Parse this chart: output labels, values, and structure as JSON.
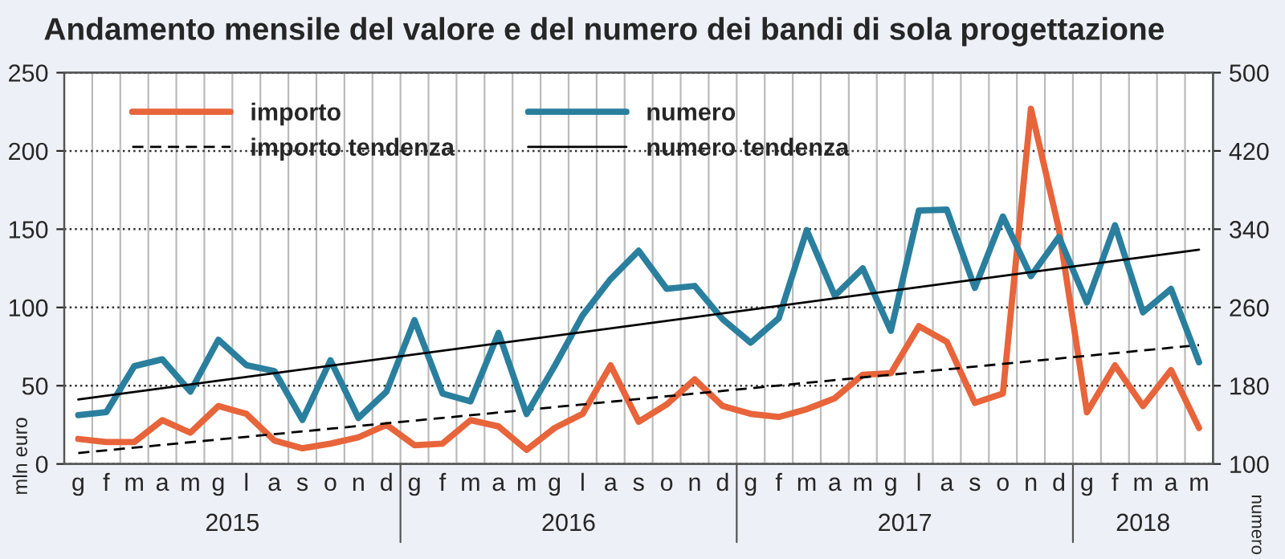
{
  "chart_data": {
    "type": "line",
    "title": "Andamento mensile del valore e del numero dei bandi di sola progettazione",
    "ylabel": "mln euro",
    "y2label": "numero",
    "categories": [
      "g",
      "f",
      "m",
      "a",
      "m",
      "g",
      "l",
      "a",
      "s",
      "o",
      "n",
      "d",
      "g",
      "f",
      "m",
      "a",
      "m",
      "g",
      "l",
      "a",
      "s",
      "o",
      "n",
      "d",
      "g",
      "f",
      "m",
      "a",
      "m",
      "g",
      "l",
      "a",
      "s",
      "o",
      "n",
      "d",
      "g",
      "f",
      "m",
      "a",
      "m"
    ],
    "series": [
      {
        "name": "importo",
        "color": "#e8643a",
        "values": [
          16,
          14,
          14,
          28,
          20,
          37,
          32,
          15,
          10,
          13,
          17,
          25,
          12,
          13,
          28,
          24,
          9,
          23,
          32,
          63,
          27,
          38,
          54,
          37,
          32,
          30,
          35,
          42,
          57,
          58,
          88,
          78,
          39,
          45,
          227,
          150,
          33,
          63,
          37,
          60,
          23
        ]
      },
      {
        "name": "numero",
        "color": "#2a7f9e",
        "axis": "y2",
        "values": [
          150,
          153,
          200,
          207,
          174,
          227,
          201,
          195,
          145,
          206,
          147,
          174,
          247,
          172,
          164,
          234,
          151,
          200,
          252,
          289,
          318,
          279,
          282,
          248,
          224,
          249,
          339,
          272,
          300,
          236,
          359,
          360,
          280,
          353,
          292,
          332,
          265,
          344,
          255,
          279,
          204
        ]
      },
      {
        "name": "importo tendenza",
        "color": "#000000",
        "line_style": "dashed",
        "values": [
          7,
          null,
          null,
          null,
          null,
          null,
          null,
          null,
          null,
          null,
          null,
          null,
          null,
          null,
          null,
          null,
          null,
          null,
          null,
          null,
          null,
          null,
          null,
          null,
          null,
          null,
          null,
          null,
          null,
          null,
          null,
          null,
          null,
          null,
          null,
          null,
          null,
          null,
          null,
          null,
          76
        ]
      },
      {
        "name": "numero tendenza",
        "color": "#000000",
        "line_style": "solid",
        "axis": "y2",
        "values": [
          166,
          null,
          null,
          null,
          null,
          null,
          null,
          null,
          null,
          null,
          null,
          null,
          null,
          null,
          null,
          null,
          null,
          null,
          null,
          null,
          null,
          null,
          null,
          null,
          null,
          null,
          null,
          null,
          null,
          null,
          null,
          null,
          null,
          null,
          null,
          null,
          null,
          null,
          null,
          null,
          319
        ]
      }
    ],
    "ylim": [
      0,
      250
    ],
    "yticks": [
      0,
      50,
      100,
      150,
      200,
      250
    ],
    "y2lim": [
      100,
      500
    ],
    "y2ticks": [
      100,
      180,
      260,
      340,
      420,
      500
    ],
    "annotations": [
      "2015",
      "2016",
      "2017",
      "2018"
    ],
    "grid": true,
    "legend": "top left"
  }
}
